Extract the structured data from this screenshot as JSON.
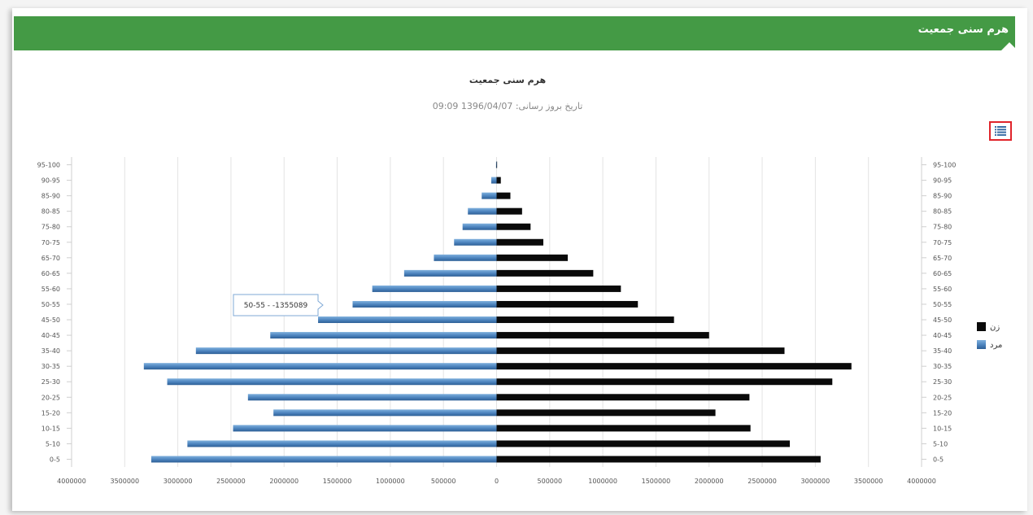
{
  "panel": {
    "title": "هرم سنی جمعیت"
  },
  "colors": {
    "header": "#449a45",
    "male": "#4f86c0",
    "female": "#0a0a0a",
    "menu_border": "#e0242b"
  },
  "toolbar": {
    "menu_icon": "list-icon"
  },
  "chart_data": {
    "type": "bar",
    "orientation": "horizontal-pyramid",
    "title": "هرم سنی جمعیت",
    "subtitle": "تاریخ بروز رسانی: 1396/04/07 09:09",
    "categories": [
      "95-100",
      "90-95",
      "85-90",
      "80-85",
      "75-80",
      "70-75",
      "65-70",
      "60-65",
      "55-60",
      "50-55",
      "45-50",
      "40-45",
      "35-40",
      "30-35",
      "25-30",
      "20-25",
      "15-20",
      "10-15",
      "5-10",
      "0-5"
    ],
    "series": [
      {
        "name": "زن",
        "color": "#0a0a0a",
        "side": "right",
        "values": [
          5000,
          40000,
          130000,
          240000,
          320000,
          440000,
          670000,
          910000,
          1170000,
          1330000,
          1670000,
          2000000,
          2710000,
          3340000,
          3160000,
          2380000,
          2060000,
          2390000,
          2760000,
          3050000
        ]
      },
      {
        "name": "مرد",
        "color": "#4f86c0",
        "side": "left",
        "values": [
          5000,
          50000,
          140000,
          270000,
          320000,
          400000,
          590000,
          870000,
          1170000,
          1355089,
          1680000,
          2130000,
          2830000,
          3320000,
          3100000,
          2340000,
          2100000,
          2480000,
          2910000,
          3250000
        ]
      }
    ],
    "x_ticks": [
      "4000000",
      "3500000",
      "3000000",
      "2500000",
      "2000000",
      "1500000",
      "1000000",
      "500000",
      "0",
      "500000",
      "1000000",
      "1500000",
      "2000000",
      "2500000",
      "3000000",
      "3500000",
      "4000000"
    ],
    "xlim": [
      -4000000,
      4000000
    ],
    "grid": true,
    "legend": "right",
    "tooltip": {
      "text": "50-55 - -1355089",
      "category": "50-55",
      "series": "مرد"
    }
  }
}
